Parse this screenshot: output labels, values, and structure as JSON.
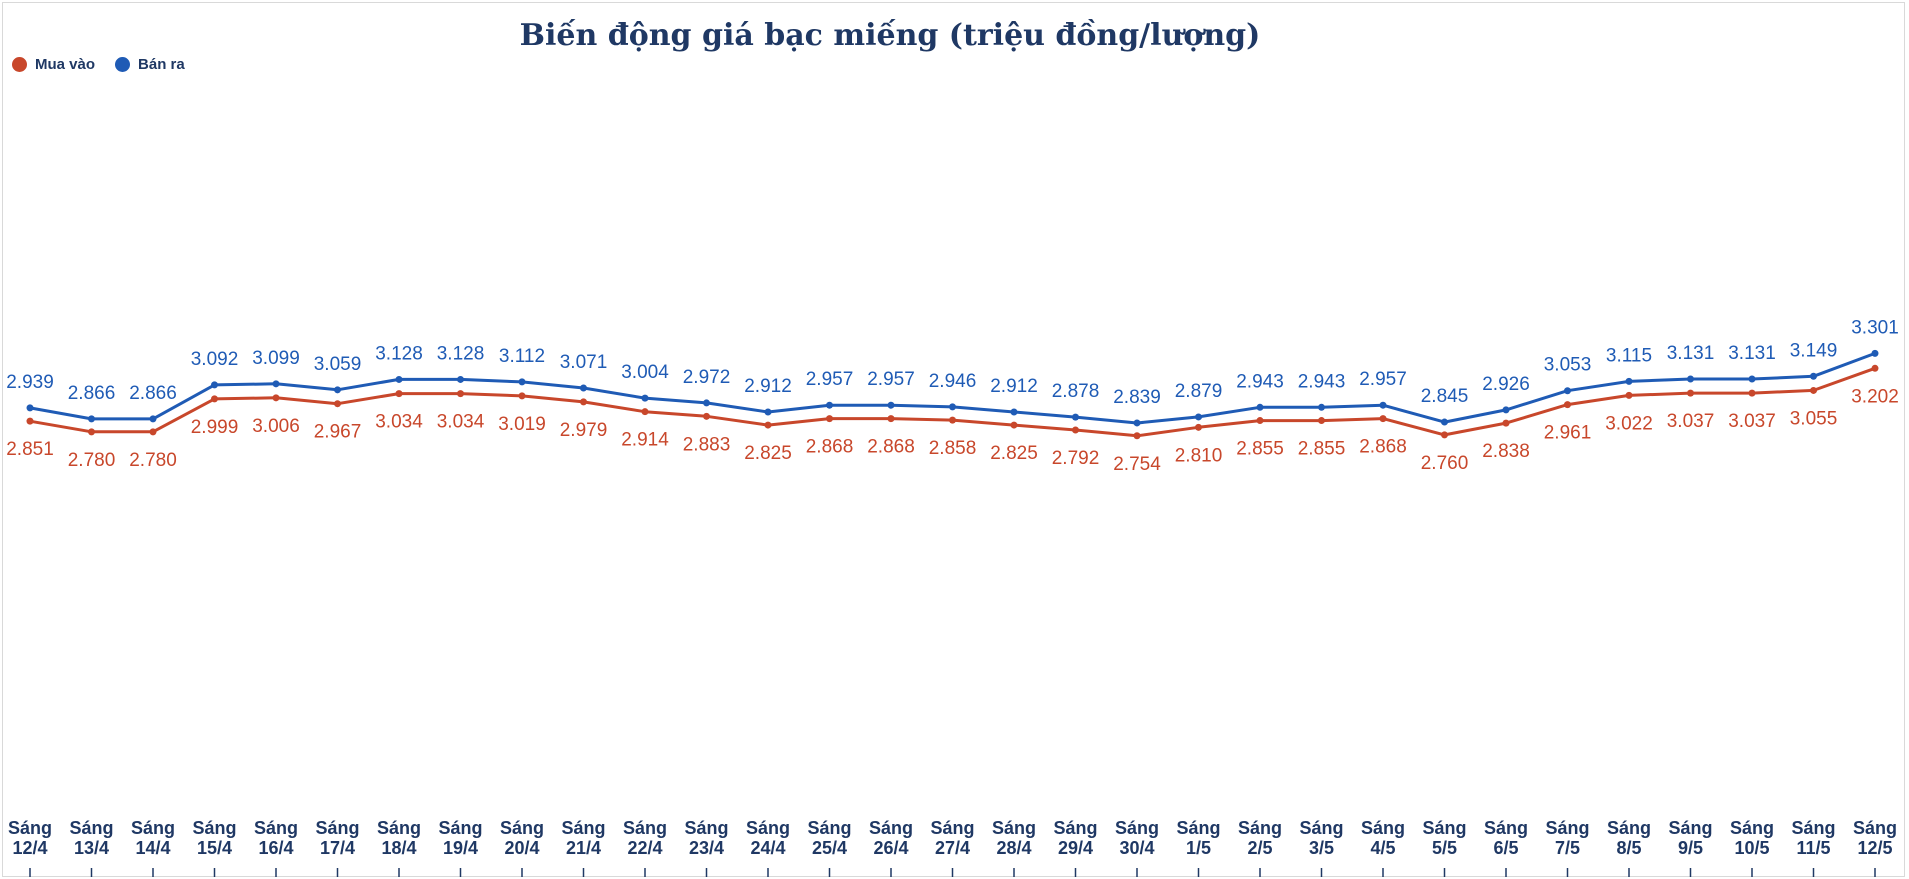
{
  "chart_data": {
    "type": "line",
    "title": "Biến động giá bạc miếng (triệu đồng/lượng)",
    "categories": [
      [
        "Sáng",
        "12/4"
      ],
      [
        "Sáng",
        "13/4"
      ],
      [
        "Sáng",
        "14/4"
      ],
      [
        "Sáng",
        "15/4"
      ],
      [
        "Sáng",
        "16/4"
      ],
      [
        "Sáng",
        "17/4"
      ],
      [
        "Sáng",
        "18/4"
      ],
      [
        "Sáng",
        "19/4"
      ],
      [
        "Sáng",
        "20/4"
      ],
      [
        "Sáng",
        "21/4"
      ],
      [
        "Sáng",
        "22/4"
      ],
      [
        "Sáng",
        "23/4"
      ],
      [
        "Sáng",
        "24/4"
      ],
      [
        "Sáng",
        "25/4"
      ],
      [
        "Sáng",
        "26/4"
      ],
      [
        "Sáng",
        "27/4"
      ],
      [
        "Sáng",
        "28/4"
      ],
      [
        "Sáng",
        "29/4"
      ],
      [
        "Sáng",
        "30/4"
      ],
      [
        "Sáng",
        "1/5"
      ],
      [
        "Sáng",
        "2/5"
      ],
      [
        "Sáng",
        "3/5"
      ],
      [
        "Sáng",
        "4/5"
      ],
      [
        "Sáng",
        "5/5"
      ],
      [
        "Sáng",
        "6/5"
      ],
      [
        "Sáng",
        "7/5"
      ],
      [
        "Sáng",
        "8/5"
      ],
      [
        "Sáng",
        "9/5"
      ],
      [
        "Sáng",
        "10/5"
      ],
      [
        "Sáng",
        "11/5"
      ],
      [
        "Sáng",
        "12/5"
      ]
    ],
    "series": [
      {
        "name": "Mua vào",
        "color": "#c8472b",
        "labels": [
          "2.851",
          "2.780",
          "2.780",
          "2.999",
          "3.006",
          "2.967",
          "3.034",
          "3.034",
          "3.019",
          "2.979",
          "2.914",
          "2.883",
          "2.825",
          "2.868",
          "2.868",
          "2.858",
          "2.825",
          "2.792",
          "2.754",
          "2.810",
          "2.855",
          "2.855",
          "2.868",
          "2.760",
          "2.838",
          "2.961",
          "3.022",
          "3.037",
          "3.037",
          "3.055",
          "3.202"
        ],
        "values": [
          2.851,
          2.78,
          2.78,
          2.999,
          3.006,
          2.967,
          3.034,
          3.034,
          3.019,
          2.979,
          2.914,
          2.883,
          2.825,
          2.868,
          2.868,
          2.858,
          2.825,
          2.792,
          2.754,
          2.81,
          2.855,
          2.855,
          2.868,
          2.76,
          2.838,
          2.961,
          3.022,
          3.037,
          3.037,
          3.055,
          3.202
        ]
      },
      {
        "name": "Bán ra",
        "color": "#1f5bb5",
        "labels": [
          "2.939",
          "2.866",
          "2.866",
          "3.092",
          "3.099",
          "3.059",
          "3.128",
          "3.128",
          "3.112",
          "3.071",
          "3.004",
          "2.972",
          "2.912",
          "2.957",
          "2.957",
          "2.946",
          "2.912",
          "2.878",
          "2.839",
          "2.879",
          "2.943",
          "2.943",
          "2.957",
          "2.845",
          "2.926",
          "3.053",
          "3.115",
          "3.131",
          "3.131",
          "3.149",
          "3.301"
        ],
        "values": [
          2.939,
          2.866,
          2.866,
          3.092,
          3.099,
          3.059,
          3.128,
          3.128,
          3.112,
          3.071,
          3.004,
          2.972,
          2.912,
          2.957,
          2.957,
          2.946,
          2.912,
          2.878,
          2.839,
          2.879,
          2.943,
          2.943,
          2.957,
          2.845,
          2.926,
          3.053,
          3.115,
          3.131,
          3.131,
          3.149,
          3.301
        ]
      }
    ],
    "grid": false,
    "legend_position": "top-left"
  }
}
